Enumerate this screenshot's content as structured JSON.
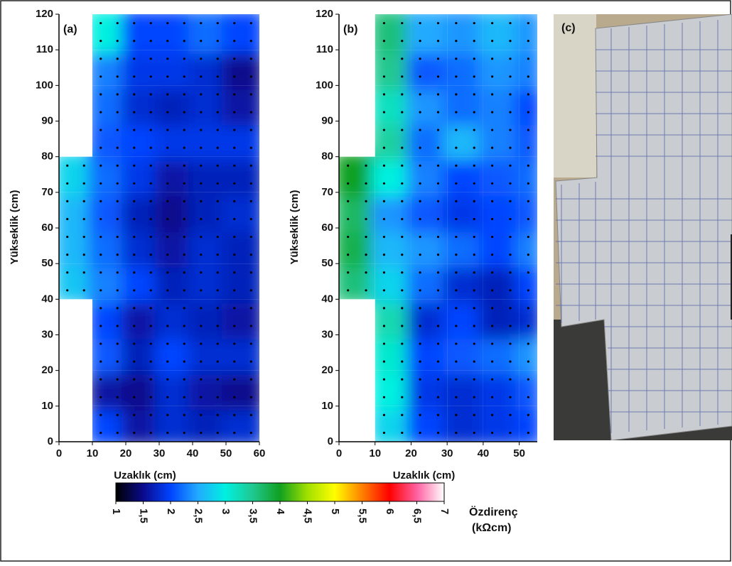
{
  "chart_data": [
    {
      "type": "heatmap",
      "panel_label": "(a)",
      "xlabel": "Uzaklık (cm)",
      "ylabel": "Yükseklik (cm)",
      "xlim": [
        0,
        60
      ],
      "ylim": [
        0,
        120
      ],
      "xticks": [
        0,
        10,
        20,
        30,
        40,
        50,
        60
      ],
      "yticks": [
        0,
        10,
        20,
        30,
        40,
        50,
        60,
        70,
        80,
        90,
        100,
        110,
        120
      ],
      "x": [
        5,
        15,
        25,
        35,
        45,
        55
      ],
      "y": [
        5,
        15,
        25,
        35,
        45,
        55,
        65,
        75,
        85,
        95,
        105,
        115
      ],
      "z": [
        [
          null,
          2.0,
          1.6,
          1.8,
          1.7,
          1.8
        ],
        [
          null,
          1.6,
          1.5,
          1.8,
          1.6,
          1.5
        ],
        [
          null,
          2.1,
          1.7,
          2.0,
          1.8,
          1.8
        ],
        [
          null,
          2.0,
          1.6,
          1.8,
          1.7,
          1.6
        ],
        [
          2.7,
          2.3,
          2.0,
          1.7,
          1.8,
          1.7
        ],
        [
          2.6,
          2.2,
          1.8,
          1.6,
          1.8,
          1.7
        ],
        [
          2.6,
          2.1,
          1.7,
          1.5,
          1.7,
          1.8
        ],
        [
          2.8,
          2.2,
          1.9,
          1.6,
          1.7,
          1.7
        ],
        [
          null,
          2.1,
          2.0,
          1.9,
          1.9,
          1.9
        ],
        [
          null,
          2.2,
          1.8,
          1.7,
          1.8,
          1.6
        ],
        [
          null,
          2.3,
          1.9,
          1.9,
          1.8,
          1.5
        ],
        [
          null,
          3.0,
          2.0,
          2.0,
          2.2,
          2.0
        ]
      ]
    },
    {
      "type": "heatmap",
      "panel_label": "(b)",
      "xlabel": "Uzaklık (cm)",
      "ylabel": "Yükseklik (cm)",
      "xlim": [
        0,
        55
      ],
      "ylim": [
        0,
        120
      ],
      "xticks": [
        0,
        10,
        20,
        30,
        40,
        50
      ],
      "yticks": [
        0,
        10,
        20,
        30,
        40,
        50,
        60,
        70,
        80,
        90,
        100,
        110,
        120
      ],
      "x": [
        5,
        15,
        25,
        35,
        45,
        55
      ],
      "y": [
        5,
        15,
        25,
        35,
        45,
        55,
        65,
        75,
        85,
        95,
        105,
        115
      ],
      "z": [
        [
          null,
          2.8,
          2.0,
          1.8,
          1.9,
          2.0
        ],
        [
          null,
          3.0,
          1.9,
          1.8,
          1.9,
          2.1
        ],
        [
          null,
          3.1,
          2.0,
          2.1,
          2.2,
          2.4
        ],
        [
          null,
          3.3,
          1.8,
          2.0,
          1.7,
          1.8
        ],
        [
          3.6,
          2.8,
          2.2,
          1.8,
          1.7,
          2.0
        ],
        [
          3.8,
          2.6,
          2.4,
          2.2,
          2.0,
          2.3
        ],
        [
          3.7,
          2.4,
          2.1,
          1.9,
          2.0,
          2.1
        ],
        [
          4.0,
          3.0,
          2.3,
          2.0,
          2.1,
          2.2
        ],
        [
          null,
          3.4,
          2.2,
          2.6,
          2.3,
          2.1
        ],
        [
          null,
          3.2,
          2.4,
          2.2,
          2.3,
          2.0
        ],
        [
          null,
          3.5,
          2.1,
          2.2,
          2.4,
          2.3
        ],
        [
          null,
          3.6,
          2.5,
          2.4,
          2.6,
          2.4
        ]
      ]
    }
  ],
  "colorbar": {
    "title": "Özdirenç",
    "unit": "(kΩcm)",
    "lim": [
      1,
      7
    ],
    "ticks": [
      1,
      {
        "value": 1.5,
        "label": "1,5"
      },
      2,
      {
        "value": 2.5,
        "label": "2,5"
      },
      3,
      {
        "value": 3.5,
        "label": "3,5"
      },
      4,
      {
        "value": 4.5,
        "label": "4,5"
      },
      5,
      {
        "value": 5.5,
        "label": "5,5"
      },
      6,
      {
        "value": 6.5,
        "label": "6,5"
      },
      7
    ],
    "colors": [
      "#000000",
      "#0a0a8c",
      "#0044ff",
      "#22aaff",
      "#00f0e0",
      "#20c890",
      "#10a020",
      "#a0e000",
      "#ffff00",
      "#ff8000",
      "#ff0000",
      "#ff60a0",
      "#ffffff"
    ]
  },
  "photo": {
    "panel_label": "(c)"
  }
}
